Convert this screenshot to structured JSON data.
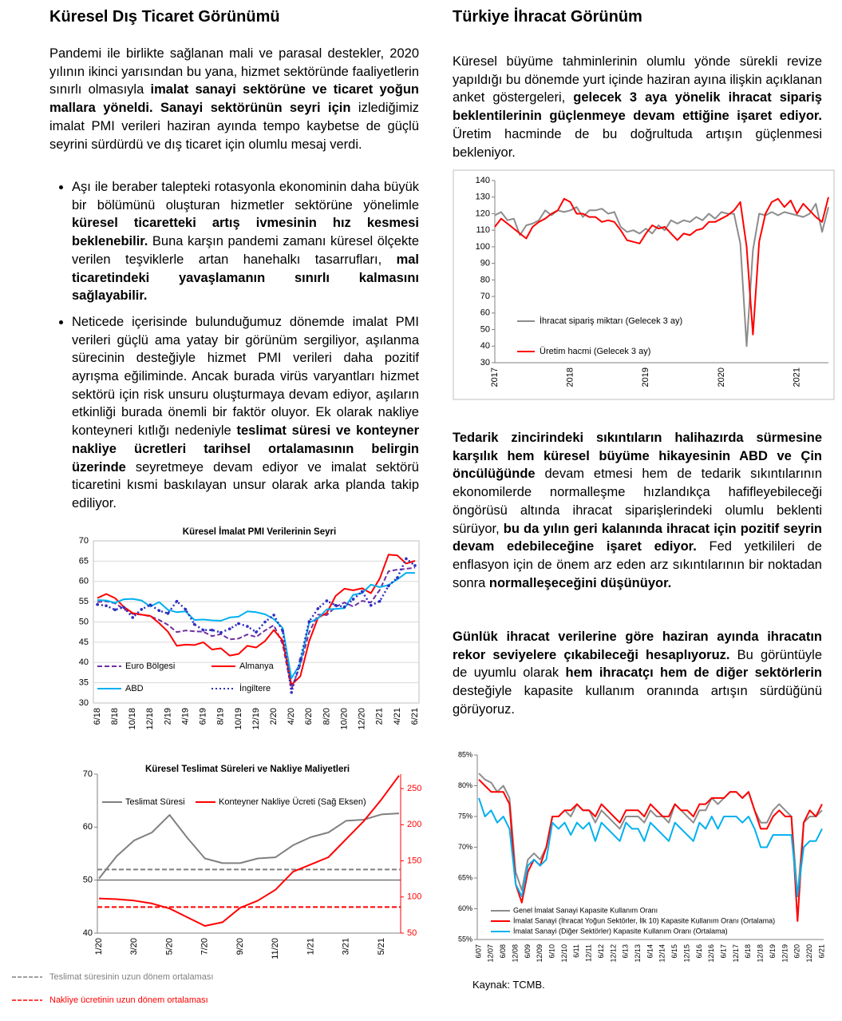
{
  "left": {
    "title": "Küresel Dış Ticaret Görünümü",
    "paragraphs": [
      [
        "Pandemi ile birlikte sağlanan mali ve parasal destekler, 2020 yılının ikinci yarısından bu yana, hizmet sektöründe faaliyetlerin sınırlı olmasıyla ",
        {
          "bold": "imalat sanayi sektörüne ve ticaret yoğun mallara yöneldi. Sanayi sektörünün seyri için"
        },
        " izlediğimiz imalat PMI verileri haziran ayında tempo kaybetse de güçlü seyrini sürdürdü ve dış ticaret için olumlu mesaj verdi."
      ]
    ],
    "bullets": [
      [
        "Aşı ile beraber talepteki rotasyonla ekonominin daha büyük bir bölümünü oluşturan hizmetler sektörüne yönelimle ",
        {
          "bold": "küresel ticaretteki artış ivmesinin hız kesmesi beklenebilir."
        },
        " Buna karşın pandemi zamanı küresel ölçekte verilen teşviklerle artan hanehalkı tasarrufları, ",
        {
          "bold": "mal ticaretindeki yavaşlamanın sınırlı kalmasını sağlayabilir."
        }
      ],
      [
        "Neticede içerisinde bulunduğumuz dönemde imalat PMI verileri güçlü ama yatay bir görünüm sergiliyor, aşılanma sürecinin desteğiyle hizmet PMI verileri daha pozitif ayrışma eğiliminde. Ancak burada virüs varyantları hizmet sektörü için risk unsuru oluşturmaya devam ediyor, aşıların etkinliği burada önemli bir faktör oluyor. Ek olarak nakliye konteyneri kıtlığı nedeniyle ",
        {
          "bold": "teslimat süresi ve konteyner nakliye ücretleri tarihsel ortalamasının belirgin üzerinde"
        },
        " seyretmeye devam ediyor ve imalat sektörü ticaretini kısmi baskılayan unsur olarak arka planda takip ediliyor."
      ]
    ]
  },
  "right": {
    "title": "Türkiye İhracat Görünüm",
    "paragraphs": [
      [
        "Küresel büyüme tahminlerinin olumlu yönde sürekli revize yapıldığı bu dönemde yurt içinde haziran ayına ilişkin açıklanan anket göstergeleri, ",
        {
          "bold": "gelecek 3 aya yönelik ihracat sipariş beklentilerinin güçlenmeye devam ettiğine işaret ediyor."
        },
        " Üretim hacminde de bu doğrultuda artışın güçlenmesi bekleniyor."
      ],
      [
        {
          "bold": "Tedarik zincirindeki sıkıntıların halihazırda sürmesine karşılık hem küresel büyüme hikayesinin ABD ve Çin öncülüğünde"
        },
        " devam etmesi hem de tedarik sıkıntılarının ekonomilerde normalleşme hızlandıkça hafifleyebileceği öngörüsü altında ihracat siparişlerindeki olumlu beklenti sürüyor, ",
        {
          "bold": "bu da yılın geri kalanında ihracat için pozitif seyrin devam edebileceğine işaret ediyor."
        },
        " Fed yetkilileri de enflasyon için de önem arz eden arz sıkıntılarının bir noktadan sonra ",
        {
          "bold": "normalleşeceğini düşünüyor."
        }
      ],
      [
        {
          "bold": "Günlük ihracat verilerine göre haziran ayında ihracatın rekor seviyelere çıkabileceği hesaplıyoruz."
        },
        " Bu görüntüyle de uyumlu olarak ",
        {
          "bold": "hem ihracatçı hem de diğer sektörlerin"
        },
        " desteğiyle kapasite kullanım oranında artışın sürdüğünü görüyoruz."
      ]
    ],
    "source": "Kaynak: TCMB."
  },
  "chart_data": [
    {
      "type": "line",
      "grid": false,
      "categories": [
        "2017",
        null,
        null,
        null,
        null,
        null,
        null,
        null,
        null,
        null,
        null,
        null,
        "2018",
        null,
        null,
        null,
        null,
        null,
        null,
        null,
        null,
        null,
        null,
        null,
        "2019",
        null,
        null,
        null,
        null,
        null,
        null,
        null,
        null,
        null,
        null,
        null,
        "2020",
        null,
        null,
        null,
        null,
        null,
        null,
        null,
        null,
        null,
        null,
        null,
        "2021",
        null,
        null,
        null,
        null,
        null
      ],
      "ylim": [
        30,
        140
      ],
      "yticks": [
        30,
        40,
        50,
        60,
        70,
        80,
        90,
        100,
        110,
        120,
        130,
        140
      ],
      "series": [
        {
          "name": "İhracat sipariş miktarı (Gelecek 3 ay)",
          "color": "#8c8c8c",
          "values": [
            119,
            121,
            116,
            117,
            107,
            113,
            114,
            116,
            122,
            119,
            122,
            121,
            122,
            124,
            118,
            122,
            122,
            123,
            120,
            121,
            112,
            109,
            110,
            108,
            111,
            108,
            113,
            110,
            116,
            114,
            116,
            115,
            118,
            116,
            120,
            117,
            121,
            120,
            120,
            102,
            40,
            98,
            120,
            119,
            121,
            119,
            121,
            120,
            119,
            118,
            120,
            126,
            109,
            124
          ]
        },
        {
          "name": "Üretim hacmi (Gelecek 3 ay)",
          "color": "#ff0000",
          "values": [
            112,
            117,
            114,
            111,
            108,
            105,
            112,
            115,
            117,
            120,
            122,
            129,
            127,
            120,
            120,
            118,
            118,
            115,
            116,
            115,
            110,
            104,
            103,
            102,
            108,
            113,
            111,
            112,
            108,
            104,
            108,
            107,
            110,
            111,
            115,
            115,
            117,
            119,
            122,
            127,
            100,
            47,
            103,
            120,
            127,
            129,
            124,
            128,
            120,
            126,
            122,
            118,
            115,
            130
          ]
        }
      ]
    },
    {
      "type": "line",
      "title": "Küresel İmalat PMI Verilerinin Seyri",
      "grid": true,
      "categories": [
        "6/18",
        null,
        "8/18",
        null,
        "10/18",
        null,
        "12/18",
        null,
        "2/19",
        null,
        "4/19",
        null,
        "6/19",
        null,
        "8/19",
        null,
        "10/19",
        null,
        "12/19",
        null,
        "2/20",
        null,
        "4/20",
        null,
        "6/20",
        null,
        "8/20",
        null,
        "10/20",
        null,
        "12/20",
        null,
        "2/21",
        null,
        "4/21",
        null,
        "6/21"
      ],
      "ylim": [
        30,
        70
      ],
      "yticks": [
        30,
        35,
        40,
        45,
        50,
        55,
        60,
        65,
        70
      ],
      "series": [
        {
          "name": "Euro Bölgesi",
          "color": "#7030a0",
          "style": "dash",
          "values": [
            54.9,
            55.1,
            54.6,
            53.2,
            52.0,
            51.8,
            51.4,
            50.5,
            49.3,
            47.5,
            47.9,
            47.7,
            47.6,
            46.5,
            47.0,
            45.7,
            45.9,
            46.9,
            46.3,
            47.9,
            49.2,
            44.5,
            33.4,
            39.4,
            47.4,
            51.8,
            51.7,
            53.7,
            54.8,
            53.8,
            55.2,
            54.8,
            57.9,
            62.5,
            62.9,
            63.1,
            63.4
          ]
        },
        {
          "name": "Almanya",
          "color": "#ff0000",
          "values": [
            55.9,
            56.9,
            55.9,
            53.7,
            52.2,
            51.8,
            51.5,
            49.7,
            47.6,
            44.1,
            44.4,
            44.3,
            45.0,
            43.2,
            43.5,
            41.7,
            42.1,
            44.1,
            43.7,
            45.3,
            48.0,
            45.4,
            34.5,
            36.6,
            45.2,
            51.0,
            52.2,
            56.4,
            58.2,
            57.8,
            58.3,
            57.1,
            60.7,
            66.6,
            66.4,
            64.4,
            65.1
          ]
        },
        {
          "name": "ABD",
          "color": "#00b0f0",
          "values": [
            55.4,
            55.3,
            54.7,
            55.6,
            55.7,
            55.3,
            53.8,
            54.9,
            53.0,
            52.4,
            52.6,
            50.5,
            50.6,
            50.4,
            50.3,
            51.1,
            51.3,
            52.6,
            52.4,
            51.9,
            50.7,
            48.5,
            36.1,
            39.8,
            49.8,
            50.9,
            53.1,
            53.2,
            53.4,
            56.7,
            57.1,
            59.2,
            58.6,
            59.1,
            60.5,
            62.1,
            62.1
          ]
        },
        {
          "name": "İngiltere",
          "color": "#2f2fbf",
          "style": "dot",
          "marker": true,
          "values": [
            54.3,
            54.0,
            53.0,
            53.6,
            51.1,
            53.1,
            54.2,
            52.8,
            52.1,
            55.1,
            53.1,
            49.4,
            48.0,
            48.0,
            47.4,
            48.3,
            49.6,
            48.9,
            47.5,
            50.0,
            51.7,
            47.8,
            32.6,
            40.7,
            50.1,
            53.3,
            55.2,
            54.1,
            53.7,
            55.6,
            57.5,
            54.1,
            55.1,
            58.9,
            60.9,
            65.6,
            63.9
          ]
        }
      ]
    },
    {
      "type": "line",
      "title": "Küresel Teslimat Süreleri ve Nakliye Maliyetleri",
      "grid": false,
      "categories": [
        "1/20",
        null,
        "3/20",
        null,
        "5/20",
        null,
        "7/20",
        null,
        "9/20",
        null,
        "11/20",
        null,
        "1/21",
        null,
        "3/21",
        null,
        "5/21",
        null
      ],
      "ylim": [
        40,
        70
      ],
      "yticks": [
        40,
        50,
        60,
        70
      ],
      "y2lim": [
        50,
        270
      ],
      "y2ticks": [
        50,
        100,
        150,
        200,
        250
      ],
      "baseline": 50,
      "series": [
        {
          "name": "Teslimat Süresi",
          "color": "#808080",
          "values": [
            50.3,
            54.5,
            57.5,
            59,
            62.3,
            58,
            54.1,
            53.2,
            53.2,
            54.1,
            54.3,
            56.6,
            58.1,
            59,
            61.2,
            61.4,
            62.4,
            62.6
          ]
        },
        {
          "name": "Konteyner Nakliye Ücreti (Sağ Eksen)",
          "color": "#ff0000",
          "axis": "y2",
          "values": [
            98,
            97,
            95,
            91,
            84,
            72,
            60,
            65,
            85,
            95,
            110,
            135,
            145,
            155,
            180,
            205,
            235,
            268
          ]
        }
      ],
      "reference_lines": [
        {
          "name": "Teslimat süresinin uzun dönem ortalaması",
          "value": 52,
          "color": "#808080"
        },
        {
          "name": "Nakliye ücretinin uzun dönem ortalaması",
          "value": 86,
          "axis": "y2",
          "color": "#ff0000"
        }
      ]
    },
    {
      "type": "line",
      "grid": false,
      "categories": [
        "6/07",
        null,
        "12/07",
        null,
        "6/08",
        null,
        "12/08",
        null,
        "6/09",
        null,
        "12/09",
        null,
        "6/10",
        null,
        "12/10",
        null,
        "6/11",
        null,
        "12/11",
        null,
        "6/12",
        null,
        "12/12",
        null,
        "6/13",
        null,
        "12/13",
        null,
        "6/14",
        null,
        "12/14",
        null,
        "6/15",
        null,
        "12/15",
        null,
        "6/16",
        null,
        "12/16",
        null,
        "6/17",
        null,
        "12/17",
        null,
        "6/18",
        null,
        "12/18",
        null,
        "6/19",
        null,
        "12/19",
        null,
        "6/20",
        null,
        "12/20",
        null,
        "6/21"
      ],
      "ylim": [
        55,
        85
      ],
      "yticks": [
        {
          "value": 55,
          "label": "55%"
        },
        {
          "value": 60,
          "label": "60%"
        },
        {
          "value": 65,
          "label": "65%"
        },
        {
          "value": 70,
          "label": "70%"
        },
        {
          "value": 75,
          "label": "75%"
        },
        {
          "value": 80,
          "label": "80%"
        },
        {
          "value": 85,
          "label": "85%"
        }
      ],
      "series": [
        {
          "name": "Genel İmalat Sanayi Kapasite Kullanım Oranı",
          "color": "#8c8c8c",
          "values": [
            82,
            81,
            80.5,
            79,
            80,
            78,
            66,
            63,
            68,
            69,
            68,
            70,
            75,
            75,
            76,
            75,
            77,
            76,
            76,
            74,
            76,
            75,
            74,
            73,
            75,
            75,
            75,
            74,
            76,
            75,
            75,
            74,
            77,
            76,
            75,
            74,
            76,
            76,
            78,
            77,
            78,
            79,
            79,
            78,
            79,
            76,
            74,
            74,
            76,
            77,
            76,
            75,
            62,
            74,
            75,
            75,
            76
          ]
        },
        {
          "name": "İmalat Sanayi (İhracat Yoğun Sektörler, İlk 10) Kapasite Kullanım Oranı (Ortalama)",
          "color": "#ff0000",
          "values": [
            81,
            80,
            79,
            79,
            79,
            77,
            64,
            61,
            66,
            68,
            67,
            70,
            75,
            75,
            76,
            76,
            77,
            76,
            76,
            75,
            77,
            76,
            75,
            74,
            76,
            76,
            76,
            75,
            77,
            76,
            75,
            75,
            77,
            76,
            76,
            75,
            77,
            77,
            78,
            78,
            78,
            79,
            79,
            78,
            79,
            76,
            73,
            73,
            75,
            76,
            75,
            75,
            58,
            74,
            76,
            75,
            77
          ]
        },
        {
          "name": "İmalat Sanayi (Diğer Sektörler) Kapasite Kullanım Oranı (Ortalama)",
          "color": "#00b0f0",
          "values": [
            78,
            75,
            76,
            74,
            75,
            73,
            64,
            62,
            67,
            68,
            67,
            68,
            74,
            73,
            74,
            72,
            74,
            73,
            74,
            71,
            74,
            73,
            72,
            71,
            74,
            73,
            73,
            71,
            74,
            73,
            72,
            71,
            74,
            73,
            72,
            71,
            74,
            73,
            75,
            73,
            75,
            75,
            75,
            74,
            75,
            73,
            70,
            70,
            72,
            72,
            72,
            72,
            62,
            70,
            71,
            71,
            73
          ]
        }
      ]
    }
  ]
}
